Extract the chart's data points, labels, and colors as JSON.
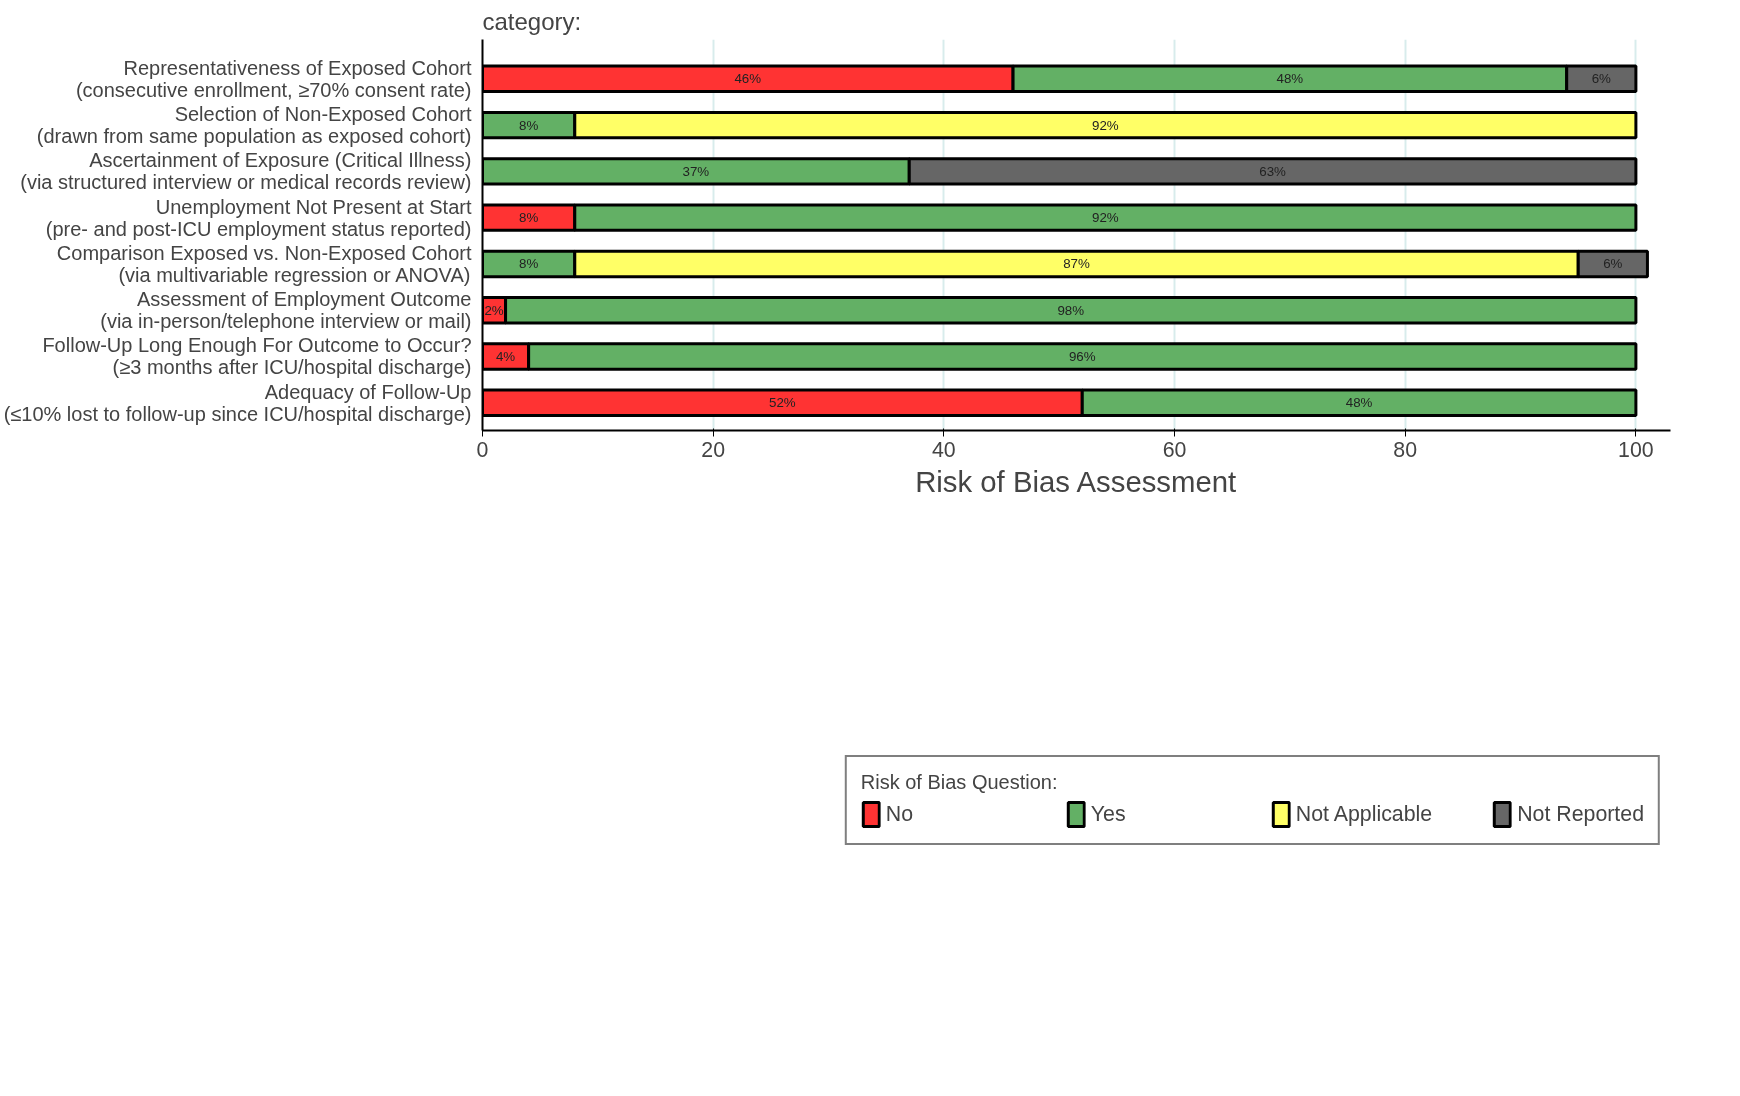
{
  "chart_data": {
    "type": "bar",
    "orientation": "horizontal",
    "stacked": true,
    "grid": "x",
    "legend": "bottom",
    "xlabel": "Risk of Bias Assessment",
    "legend_title": "Risk of Bias Question:",
    "annotations": [
      "category:"
    ],
    "categories": [
      "Representativeness of Exposed Cohort\n(consecutive enrollment, ≥70% consent rate)",
      "Selection of Non-Exposed Cohort\n(drawn from same population as exposed cohort)",
      "Ascertainment of Exposure (Critical Illness)\n(via structured interview or medical records review)",
      "Unemployment Not Present at Start\n(pre- and post-ICU employment status reported)",
      "Comparison Exposed vs. Non-Exposed Cohort\n(via multivariable regression or ANOVA)",
      "Assessment of Employment Outcome\n(via in-person/telephone interview or mail)",
      "Follow-Up Long Enough For Outcome to Occur?\n(≥3 months after ICU/hospital discharge)",
      "Adequacy of Follow-Up\n(≤10% lost to follow-up since ICU/hospital discharge)"
    ],
    "xlim": [
      0,
      103
    ],
    "xticks": [
      0,
      20,
      40,
      60,
      80,
      100
    ],
    "series": [
      {
        "name": "No",
        "color": "#ff3333",
        "values": [
          46,
          null,
          null,
          8,
          null,
          2,
          4,
          52
        ],
        "value_labels": [
          "46%",
          null,
          null,
          "8%",
          null,
          "2%",
          "4%",
          "52%"
        ]
      },
      {
        "name": "Yes",
        "color": "#63b065",
        "values": [
          48,
          8,
          37,
          92,
          8,
          98,
          96,
          48
        ],
        "value_labels": [
          "48%",
          "8%",
          "37%",
          "92%",
          "8%",
          "98%",
          "96%",
          "48%"
        ]
      },
      {
        "name": "Not Applicable",
        "color": "#ffff66",
        "values": [
          null,
          92,
          null,
          null,
          87,
          null,
          null,
          null
        ],
        "value_labels": [
          null,
          "92%",
          null,
          null,
          "87%",
          null,
          null,
          null
        ]
      },
      {
        "name": "Not Reported",
        "color": "#666666",
        "values": [
          6,
          null,
          63,
          null,
          6,
          null,
          null,
          null
        ],
        "value_labels": [
          "6%",
          null,
          "63%",
          null,
          "6%",
          null,
          null,
          null
        ]
      }
    ]
  }
}
